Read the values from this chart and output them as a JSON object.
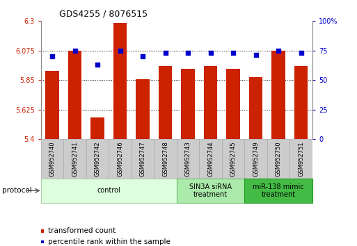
{
  "title": "GDS4255 / 8076515",
  "samples": [
    "GSM952740",
    "GSM952741",
    "GSM952742",
    "GSM952746",
    "GSM952747",
    "GSM952748",
    "GSM952743",
    "GSM952744",
    "GSM952745",
    "GSM952749",
    "GSM952750",
    "GSM952751"
  ],
  "bar_values": [
    5.92,
    6.075,
    5.565,
    6.285,
    5.855,
    5.955,
    5.935,
    5.955,
    5.935,
    5.87,
    6.075,
    5.955
  ],
  "dot_values": [
    70,
    75,
    63,
    75,
    70,
    73,
    73,
    73,
    73,
    71,
    75,
    73
  ],
  "bar_color": "#cc2200",
  "dot_color": "#0000cc",
  "ylim_left": [
    5.4,
    6.3
  ],
  "ylim_right": [
    0,
    100
  ],
  "yticks_left": [
    5.4,
    5.625,
    5.85,
    6.075,
    6.3
  ],
  "yticks_right": [
    0,
    25,
    50,
    75,
    100
  ],
  "ytick_labels_left": [
    "5.4",
    "5.625",
    "5.85",
    "6.075",
    "6.3"
  ],
  "ytick_labels_right": [
    "0",
    "25",
    "50",
    "75",
    "100%"
  ],
  "grid_lines": [
    5.625,
    5.85,
    6.075
  ],
  "groups": [
    {
      "label": "control",
      "start": 0,
      "end": 6,
      "color": "#ddffdd",
      "edge": "#aaccaa"
    },
    {
      "label": "SIN3A siRNA\ntreatment",
      "start": 6,
      "end": 9,
      "color": "#aaeaaa",
      "edge": "#77bb77"
    },
    {
      "label": "miR-138 mimic\ntreatment",
      "start": 9,
      "end": 12,
      "color": "#44bb44",
      "edge": "#229922"
    }
  ],
  "legend_bar_label": "transformed count",
  "legend_dot_label": "percentile rank within the sample",
  "protocol_label": "protocol"
}
